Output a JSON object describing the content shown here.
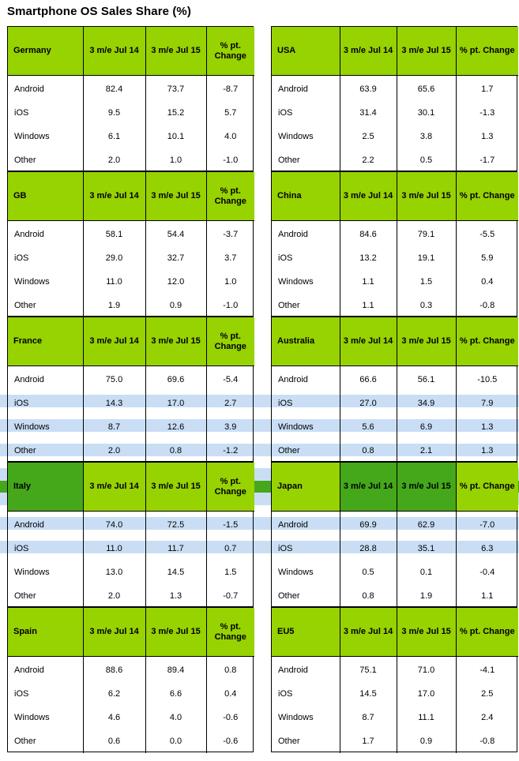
{
  "title": "Smartphone OS Sales Share (%)",
  "columns": {
    "period_a": "3 m/e Jul 14",
    "period_b": "3 m/e Jul 15",
    "change": "% pt. Change"
  },
  "chart_data": {
    "type": "table",
    "title": "Smartphone OS Sales Share (%)",
    "columns": [
      "3 m/e Jul 14",
      "3 m/e Jul 15",
      "% pt. Change"
    ],
    "regions": [
      {
        "name": "Germany",
        "rows": [
          {
            "os": "Android",
            "a": "82.4",
            "b": "73.7",
            "c": "-8.7"
          },
          {
            "os": "iOS",
            "a": "9.5",
            "b": "15.2",
            "c": "5.7"
          },
          {
            "os": "Windows",
            "a": "6.1",
            "b": "10.1",
            "c": "4.0"
          },
          {
            "os": "Other",
            "a": "2.0",
            "b": "1.0",
            "c": "-1.0"
          }
        ]
      },
      {
        "name": "USA",
        "rows": [
          {
            "os": "Android",
            "a": "63.9",
            "b": "65.6",
            "c": "1.7"
          },
          {
            "os": "iOS",
            "a": "31.4",
            "b": "30.1",
            "c": "-1.3"
          },
          {
            "os": "Windows",
            "a": "2.5",
            "b": "3.8",
            "c": "1.3"
          },
          {
            "os": "Other",
            "a": "2.2",
            "b": "0.5",
            "c": "-1.7"
          }
        ]
      },
      {
        "name": "GB",
        "rows": [
          {
            "os": "Android",
            "a": "58.1",
            "b": "54.4",
            "c": "-3.7"
          },
          {
            "os": "iOS",
            "a": "29.0",
            "b": "32.7",
            "c": "3.7"
          },
          {
            "os": "Windows",
            "a": "11.0",
            "b": "12.0",
            "c": "1.0"
          },
          {
            "os": "Other",
            "a": "1.9",
            "b": "0.9",
            "c": "-1.0"
          }
        ]
      },
      {
        "name": "China",
        "rows": [
          {
            "os": "Android",
            "a": "84.6",
            "b": "79.1",
            "c": "-5.5"
          },
          {
            "os": "iOS",
            "a": "13.2",
            "b": "19.1",
            "c": "5.9"
          },
          {
            "os": "Windows",
            "a": "1.1",
            "b": "1.5",
            "c": "0.4"
          },
          {
            "os": "Other",
            "a": "1.1",
            "b": "0.3",
            "c": "-0.8"
          }
        ]
      },
      {
        "name": "France",
        "rows": [
          {
            "os": "Android",
            "a": "75.0",
            "b": "69.6",
            "c": "-5.4"
          },
          {
            "os": "iOS",
            "a": "14.3",
            "b": "17.0",
            "c": "2.7"
          },
          {
            "os": "Windows",
            "a": "8.7",
            "b": "12.6",
            "c": "3.9"
          },
          {
            "os": "Other",
            "a": "2.0",
            "b": "0.8",
            "c": "-1.2"
          }
        ]
      },
      {
        "name": "Australia",
        "rows": [
          {
            "os": "Android",
            "a": "66.6",
            "b": "56.1",
            "c": "-10.5"
          },
          {
            "os": "iOS",
            "a": "27.0",
            "b": "34.9",
            "c": "7.9"
          },
          {
            "os": "Windows",
            "a": "5.6",
            "b": "6.9",
            "c": "1.3"
          },
          {
            "os": "Other",
            "a": "0.8",
            "b": "2.1",
            "c": "1.3"
          }
        ]
      },
      {
        "name": "Italy",
        "rows": [
          {
            "os": "Android",
            "a": "74.0",
            "b": "72.5",
            "c": "-1.5"
          },
          {
            "os": "iOS",
            "a": "11.0",
            "b": "11.7",
            "c": "0.7"
          },
          {
            "os": "Windows",
            "a": "13.0",
            "b": "14.5",
            "c": "1.5"
          },
          {
            "os": "Other",
            "a": "2.0",
            "b": "1.3",
            "c": "-0.7"
          }
        ]
      },
      {
        "name": "Japan",
        "rows": [
          {
            "os": "Android",
            "a": "69.9",
            "b": "62.9",
            "c": "-7.0"
          },
          {
            "os": "iOS",
            "a": "28.8",
            "b": "35.1",
            "c": "6.3"
          },
          {
            "os": "Windows",
            "a": "0.5",
            "b": "0.1",
            "c": "-0.4"
          },
          {
            "os": "Other",
            "a": "0.8",
            "b": "1.9",
            "c": "1.1"
          }
        ]
      },
      {
        "name": "Spain",
        "rows": [
          {
            "os": "Android",
            "a": "88.6",
            "b": "89.4",
            "c": "0.8"
          },
          {
            "os": "iOS",
            "a": "6.2",
            "b": "6.6",
            "c": "0.4"
          },
          {
            "os": "Windows",
            "a": "4.6",
            "b": "4.0",
            "c": "-0.6"
          },
          {
            "os": "Other",
            "a": "0.6",
            "b": "0.0",
            "c": "-0.6"
          }
        ]
      },
      {
        "name": "EU5",
        "rows": [
          {
            "os": "Android",
            "a": "75.1",
            "b": "71.0",
            "c": "-4.1"
          },
          {
            "os": "iOS",
            "a": "14.5",
            "b": "17.0",
            "c": "2.5"
          },
          {
            "os": "Windows",
            "a": "8.7",
            "b": "11.1",
            "c": "2.4"
          },
          {
            "os": "Other",
            "a": "1.7",
            "b": "0.9",
            "c": "-0.8"
          }
        ]
      }
    ]
  },
  "colors": {
    "header_fill": "#97d201",
    "highlight_light": "#c9def5",
    "highlight_dark": "#45a81a",
    "border": "#000000"
  }
}
